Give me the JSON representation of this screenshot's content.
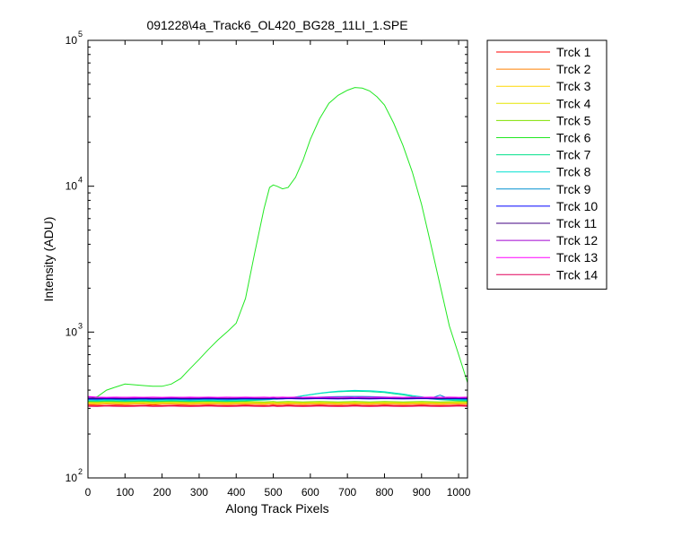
{
  "chart_data": {
    "type": "line",
    "title": "091228\\4a_Track6_OL420_BG28_11LI_1.SPE",
    "xlabel": "Along Track Pixels",
    "ylabel": "Intensity (ADU)",
    "xlim": [
      0,
      1024
    ],
    "ylim": [
      100,
      100000
    ],
    "yscale": "log",
    "grid": false,
    "legend_position": "outside-right-top",
    "x_ticks": [
      "0",
      "100",
      "200",
      "300",
      "400",
      "500",
      "600",
      "700",
      "800",
      "900",
      "1000"
    ],
    "y_ticks": [
      {
        "base": "10",
        "exp": "2"
      },
      {
        "base": "10",
        "exp": "3"
      },
      {
        "base": "10",
        "exp": "4"
      },
      {
        "base": "10",
        "exp": "5"
      }
    ],
    "x": [
      0,
      25,
      50,
      75,
      100,
      125,
      150,
      175,
      200,
      225,
      250,
      275,
      300,
      325,
      350,
      375,
      400,
      425,
      450,
      475,
      490,
      500,
      510,
      525,
      540,
      560,
      580,
      600,
      625,
      650,
      675,
      700,
      720,
      740,
      760,
      780,
      800,
      825,
      850,
      875,
      900,
      925,
      950,
      975,
      1000,
      1024
    ],
    "series": [
      {
        "name": "Trck 1",
        "color": "#ff0000",
        "values": [
          315,
          314,
          313,
          315,
          314,
          313,
          314,
          315,
          313,
          314,
          315,
          313,
          314,
          315,
          314,
          313,
          314,
          315,
          314,
          313,
          314,
          315,
          313,
          314,
          315,
          314,
          313,
          314,
          315,
          314,
          313,
          314,
          315,
          314,
          313,
          314,
          315,
          314,
          313,
          314,
          315,
          314,
          313,
          314,
          315,
          314
        ]
      },
      {
        "name": "Trck 2",
        "color": "#ff8000",
        "values": [
          320,
          319,
          321,
          320,
          319,
          320,
          321,
          319,
          320,
          321,
          320,
          319,
          320,
          321,
          320,
          319,
          320,
          321,
          320,
          319,
          320,
          321,
          319,
          320,
          321,
          320,
          319,
          320,
          321,
          320,
          319,
          320,
          321,
          320,
          319,
          320,
          321,
          320,
          319,
          320,
          321,
          320,
          319,
          320,
          321,
          320
        ]
      },
      {
        "name": "Trck 3",
        "color": "#ffd700",
        "values": [
          325,
          324,
          326,
          325,
          324,
          325,
          326,
          324,
          325,
          326,
          325,
          324,
          325,
          326,
          325,
          324,
          325,
          326,
          325,
          324,
          325,
          326,
          324,
          325,
          326,
          325,
          324,
          325,
          326,
          325,
          324,
          325,
          326,
          325,
          324,
          325,
          326,
          325,
          324,
          325,
          326,
          325,
          324,
          325,
          326,
          325
        ]
      },
      {
        "name": "Trck 4",
        "color": "#e6e600",
        "values": [
          329,
          328,
          330,
          329,
          328,
          329,
          330,
          328,
          329,
          330,
          329,
          328,
          329,
          330,
          329,
          328,
          329,
          330,
          329,
          328,
          329,
          330,
          328,
          329,
          330,
          329,
          328,
          329,
          330,
          329,
          328,
          329,
          330,
          329,
          328,
          329,
          330,
          329,
          328,
          329,
          330,
          329,
          328,
          329,
          330,
          329
        ]
      },
      {
        "name": "Trck 5",
        "color": "#80e000",
        "values": [
          333,
          332,
          334,
          333,
          332,
          333,
          334,
          332,
          333,
          334,
          333,
          332,
          333,
          334,
          333,
          332,
          333,
          334,
          333,
          332,
          333,
          334,
          332,
          333,
          334,
          333,
          332,
          333,
          334,
          333,
          332,
          333,
          334,
          333,
          332,
          333,
          334,
          333,
          332,
          333,
          334,
          333,
          332,
          333,
          334,
          333
        ]
      },
      {
        "name": "Trck 6",
        "color": "#22e822",
        "values": [
          345,
          360,
          400,
          420,
          440,
          435,
          430,
          425,
          425,
          440,
          480,
          560,
          650,
          760,
          880,
          1000,
          1150,
          1700,
          3500,
          7000,
          9800,
          10200,
          10000,
          9600,
          9800,
          11500,
          15000,
          21000,
          29000,
          37000,
          42000,
          45500,
          47500,
          47000,
          45000,
          41000,
          36000,
          27000,
          19000,
          12500,
          7500,
          4000,
          2100,
          1100,
          700,
          450
        ]
      },
      {
        "name": "Trck 7",
        "color": "#00e08a",
        "values": [
          337,
          336,
          338,
          337,
          336,
          337,
          338,
          336,
          337,
          338,
          337,
          336,
          337,
          338,
          337,
          336,
          337,
          338,
          340,
          342,
          344,
          346,
          347,
          349,
          352,
          358,
          365,
          372,
          380,
          386,
          390,
          392,
          393,
          392,
          391,
          388,
          385,
          378,
          371,
          362,
          355,
          348,
          344,
          341,
          339,
          338
        ]
      },
      {
        "name": "Trck 8",
        "color": "#00e0d0",
        "values": [
          341,
          340,
          342,
          341,
          340,
          341,
          342,
          340,
          341,
          342,
          341,
          340,
          341,
          342,
          341,
          340,
          341,
          342,
          343,
          345,
          346,
          348,
          349,
          351,
          354,
          359,
          366,
          373,
          381,
          388,
          393,
          396,
          398,
          397,
          396,
          393,
          390,
          383,
          376,
          367,
          360,
          352,
          348,
          345,
          343,
          342
        ]
      },
      {
        "name": "Trck 9",
        "color": "#0090d0",
        "values": [
          345,
          344,
          346,
          345,
          344,
          345,
          346,
          344,
          345,
          346,
          345,
          344,
          345,
          346,
          345,
          344,
          345,
          346,
          346,
          347,
          347,
          348,
          348,
          349,
          350,
          352,
          354,
          356,
          358,
          360,
          361,
          362,
          362,
          362,
          361,
          360,
          359,
          357,
          355,
          353,
          351,
          352,
          370,
          349,
          347,
          346
        ]
      },
      {
        "name": "Trck 10",
        "color": "#0000ff",
        "values": [
          349,
          348,
          350,
          349,
          348,
          349,
          350,
          348,
          349,
          350,
          349,
          348,
          349,
          350,
          349,
          348,
          349,
          350,
          349,
          348,
          349,
          350,
          348,
          349,
          350,
          349,
          348,
          349,
          350,
          349,
          348,
          349,
          350,
          349,
          348,
          349,
          350,
          349,
          348,
          349,
          350,
          349,
          348,
          349,
          350,
          349
        ]
      },
      {
        "name": "Trck 11",
        "color": "#400080",
        "values": [
          352,
          351,
          353,
          352,
          351,
          352,
          353,
          351,
          352,
          353,
          352,
          351,
          352,
          353,
          352,
          351,
          352,
          353,
          352,
          351,
          352,
          353,
          351,
          352,
          353,
          352,
          351,
          352,
          353,
          352,
          351,
          352,
          353,
          352,
          351,
          352,
          353,
          352,
          351,
          352,
          353,
          352,
          351,
          352,
          353,
          352
        ]
      },
      {
        "name": "Trck 12",
        "color": "#a000d0",
        "values": [
          358,
          356,
          355,
          356,
          357,
          355,
          356,
          357,
          355,
          356,
          357,
          355,
          356,
          357,
          355,
          356,
          357,
          355,
          356,
          357,
          355,
          356,
          357,
          355,
          356,
          357,
          355,
          356,
          357,
          355,
          356,
          357,
          355,
          356,
          357,
          355,
          356,
          357,
          355,
          356,
          357,
          355,
          356,
          357,
          355,
          356
        ]
      },
      {
        "name": "Trck 13",
        "color": "#ff00ff",
        "values": [
          362,
          358,
          357,
          358,
          357,
          358,
          357,
          358,
          357,
          358,
          357,
          358,
          357,
          358,
          357,
          358,
          357,
          358,
          357,
          358,
          357,
          358,
          357,
          358,
          357,
          358,
          357,
          358,
          357,
          358,
          357,
          358,
          357,
          358,
          357,
          358,
          357,
          358,
          357,
          358,
          357,
          358,
          357,
          358,
          357,
          358
        ]
      },
      {
        "name": "Trck 14",
        "color": "#e0005a",
        "values": [
          310,
          309,
          311,
          310,
          309,
          310,
          311,
          309,
          310,
          311,
          310,
          309,
          310,
          311,
          310,
          309,
          310,
          311,
          310,
          309,
          310,
          311,
          309,
          310,
          311,
          310,
          309,
          310,
          311,
          310,
          309,
          310,
          311,
          310,
          309,
          310,
          311,
          310,
          309,
          310,
          311,
          310,
          309,
          310,
          311,
          310
        ]
      }
    ]
  }
}
